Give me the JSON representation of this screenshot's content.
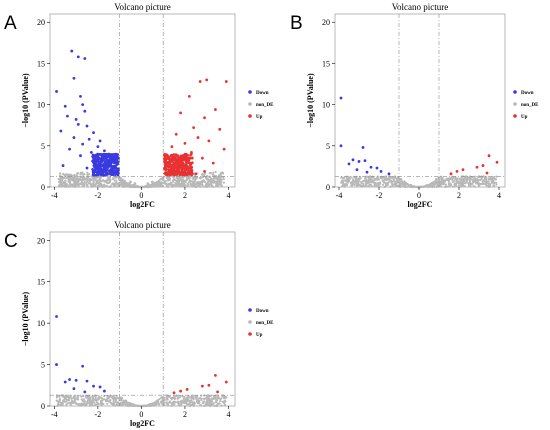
{
  "colors": {
    "Down": "#3a3ae0",
    "non_DE": "#b8b8b8",
    "Up": "#e83232"
  },
  "chart_data": [
    {
      "panel": "A",
      "type": "scatter",
      "title": "Volcano picture",
      "xlabel": "log2FC",
      "ylabel": "−log10 (PValue)",
      "xlim": [
        -4.2,
        4.3
      ],
      "ylim": [
        0,
        21
      ],
      "xticks": [
        -4,
        -2,
        0,
        2,
        4
      ],
      "yticks": [
        0,
        5,
        10,
        15,
        20
      ],
      "thresholds": {
        "log2fc": [
          -1,
          1
        ],
        "pvalue_line": 1.3
      },
      "legend": [
        "Down",
        "non_DE",
        "Up"
      ],
      "series": [
        {
          "name": "Down",
          "points": [
            [
              -3.2,
              16.5
            ],
            [
              -2.9,
              15.8
            ],
            [
              -2.6,
              15.6
            ],
            [
              -3.1,
              13.2
            ],
            [
              -3.9,
              11.6
            ],
            [
              -2.8,
              11.0
            ],
            [
              -2.7,
              10.0
            ],
            [
              -3.5,
              9.8
            ],
            [
              -2.6,
              9.2
            ],
            [
              -3.4,
              8.6
            ],
            [
              -3.0,
              8.2
            ],
            [
              -2.9,
              7.6
            ],
            [
              -2.5,
              7.4
            ],
            [
              -3.7,
              6.8
            ],
            [
              -2.2,
              6.6
            ],
            [
              -3.1,
              6.0
            ],
            [
              -2.4,
              5.8
            ],
            [
              -1.9,
              5.6
            ],
            [
              -2.7,
              5.2
            ],
            [
              -2.0,
              4.9
            ],
            [
              -3.3,
              4.6
            ],
            [
              -1.7,
              4.4
            ],
            [
              -2.3,
              4.2
            ],
            [
              -1.5,
              4.0
            ],
            [
              -2.8,
              3.8
            ],
            [
              -1.8,
              3.5
            ],
            [
              -1.3,
              3.3
            ],
            [
              -2.1,
              3.1
            ],
            [
              -1.6,
              2.9
            ],
            [
              -3.6,
              2.6
            ],
            [
              -1.2,
              2.5
            ],
            [
              -2.5,
              2.3
            ],
            [
              -1.4,
              2.1
            ],
            [
              -1.9,
              1.9
            ],
            [
              -1.1,
              1.7
            ],
            [
              -2.2,
              1.6
            ],
            [
              -1.6,
              1.5
            ]
          ]
        },
        {
          "name": "non_DE",
          "points": [
            [
              -1.0,
              0.9
            ],
            [
              -0.8,
              0.6
            ],
            [
              -0.6,
              0.4
            ],
            [
              -0.4,
              0.2
            ],
            [
              -0.2,
              0.1
            ],
            [
              0.0,
              0.0
            ],
            [
              0.2,
              0.1
            ],
            [
              0.4,
              0.2
            ],
            [
              0.6,
              0.4
            ],
            [
              0.8,
              0.6
            ],
            [
              1.0,
              0.9
            ],
            [
              -0.9,
              0.3
            ],
            [
              -0.5,
              0.6
            ],
            [
              0.5,
              0.6
            ],
            [
              0.9,
              0.3
            ],
            [
              -1.3,
              1.0
            ],
            [
              1.3,
              1.0
            ],
            [
              -2.2,
              1.1
            ],
            [
              2.2,
              1.1
            ],
            [
              -0.3,
              0.4
            ],
            [
              0.3,
              0.4
            ]
          ]
        },
        {
          "name": "Up",
          "points": [
            [
              3.0,
              13.0
            ],
            [
              2.7,
              12.8
            ],
            [
              3.9,
              12.8
            ],
            [
              2.2,
              11.0
            ],
            [
              3.4,
              9.4
            ],
            [
              1.8,
              9.0
            ],
            [
              2.9,
              8.4
            ],
            [
              2.4,
              7.2
            ],
            [
              3.6,
              7.0
            ],
            [
              1.6,
              6.4
            ],
            [
              2.6,
              6.0
            ],
            [
              3.1,
              5.6
            ],
            [
              2.0,
              5.3
            ],
            [
              1.4,
              4.9
            ],
            [
              3.8,
              4.6
            ],
            [
              2.3,
              4.2
            ],
            [
              1.2,
              3.8
            ],
            [
              2.8,
              3.5
            ],
            [
              1.7,
              3.2
            ],
            [
              3.3,
              2.9
            ],
            [
              1.1,
              2.6
            ],
            [
              2.1,
              2.4
            ],
            [
              1.5,
              2.1
            ],
            [
              2.9,
              1.9
            ],
            [
              1.3,
              1.7
            ],
            [
              2.5,
              1.6
            ]
          ]
        }
      ]
    },
    {
      "panel": "B",
      "type": "scatter",
      "title": "Volcano picture",
      "xlabel": "log2FC",
      "ylabel": "−log10 (PValue)",
      "xlim": [
        -4.2,
        4.3
      ],
      "ylim": [
        0,
        21
      ],
      "xticks": [
        -4,
        -2,
        0,
        2,
        4
      ],
      "yticks": [
        0,
        5,
        10,
        15,
        20
      ],
      "thresholds": {
        "log2fc": [
          -1,
          1
        ],
        "pvalue_line": 1.3
      },
      "legend": [
        "Down",
        "non_DE",
        "Up"
      ],
      "series": [
        {
          "name": "Down",
          "points": [
            [
              -3.9,
              10.8
            ],
            [
              -3.9,
              5.0
            ],
            [
              -2.8,
              4.8
            ],
            [
              -3.3,
              3.3
            ],
            [
              -3.0,
              3.1
            ],
            [
              -2.7,
              3.2
            ],
            [
              -3.5,
              2.8
            ],
            [
              -2.4,
              2.4
            ],
            [
              -2.1,
              2.3
            ],
            [
              -3.1,
              2.1
            ],
            [
              -1.9,
              1.9
            ],
            [
              -2.6,
              1.8
            ],
            [
              -1.5,
              1.6
            ]
          ]
        },
        {
          "name": "non_DE",
          "points": [
            [
              -1.0,
              0.9
            ],
            [
              -0.7,
              0.5
            ],
            [
              -0.4,
              0.2
            ],
            [
              0.0,
              0.0
            ],
            [
              0.4,
              0.2
            ],
            [
              0.7,
              0.5
            ],
            [
              1.0,
              0.9
            ],
            [
              -1.5,
              1.0
            ],
            [
              1.5,
              1.0
            ],
            [
              -2.5,
              1.1
            ],
            [
              2.5,
              1.1
            ],
            [
              3.5,
              1.0
            ],
            [
              -3.5,
              1.0
            ]
          ]
        },
        {
          "name": "Up",
          "points": [
            [
              3.5,
              3.8
            ],
            [
              3.9,
              3.0
            ],
            [
              3.2,
              2.6
            ],
            [
              2.9,
              2.4
            ],
            [
              2.2,
              2.1
            ],
            [
              1.9,
              1.9
            ],
            [
              3.4,
              1.7
            ],
            [
              1.6,
              1.6
            ]
          ]
        }
      ]
    },
    {
      "panel": "C",
      "type": "scatter",
      "title": "Volcano picture",
      "xlabel": "log2FC",
      "ylabel": "−log10 (PValue)",
      "xlim": [
        -4.2,
        4.3
      ],
      "ylim": [
        0,
        21
      ],
      "xticks": [
        -4,
        -2,
        0,
        2,
        4
      ],
      "yticks": [
        0,
        5,
        10,
        15,
        20
      ],
      "thresholds": {
        "log2fc": [
          -1,
          1
        ],
        "pvalue_line": 1.3
      },
      "legend": [
        "Down",
        "non_DE",
        "Up"
      ],
      "series": [
        {
          "name": "Down",
          "points": [
            [
              -3.9,
              10.8
            ],
            [
              -3.9,
              5.0
            ],
            [
              -2.7,
              4.8
            ],
            [
              -3.3,
              3.2
            ],
            [
              -3.0,
              3.1
            ],
            [
              -3.5,
              2.9
            ],
            [
              -2.5,
              3.0
            ],
            [
              -2.2,
              2.4
            ],
            [
              -1.9,
              2.3
            ],
            [
              -3.1,
              2.1
            ],
            [
              -1.7,
              1.8
            ],
            [
              -2.6,
              1.7
            ]
          ]
        },
        {
          "name": "non_DE",
          "points": [
            [
              -1.0,
              0.9
            ],
            [
              -0.7,
              0.5
            ],
            [
              -0.4,
              0.2
            ],
            [
              0.0,
              0.0
            ],
            [
              0.4,
              0.2
            ],
            [
              0.7,
              0.5
            ],
            [
              1.0,
              0.9
            ],
            [
              -1.5,
              1.0
            ],
            [
              1.5,
              1.0
            ],
            [
              -2.5,
              1.1
            ],
            [
              2.5,
              1.1
            ],
            [
              3.5,
              1.0
            ],
            [
              -3.5,
              1.0
            ]
          ]
        },
        {
          "name": "Up",
          "points": [
            [
              3.4,
              3.7
            ],
            [
              3.9,
              2.9
            ],
            [
              3.1,
              2.5
            ],
            [
              2.8,
              2.4
            ],
            [
              2.1,
              2.0
            ],
            [
              1.8,
              1.8
            ],
            [
              3.5,
              1.7
            ],
            [
              1.5,
              1.6
            ]
          ]
        }
      ]
    }
  ]
}
